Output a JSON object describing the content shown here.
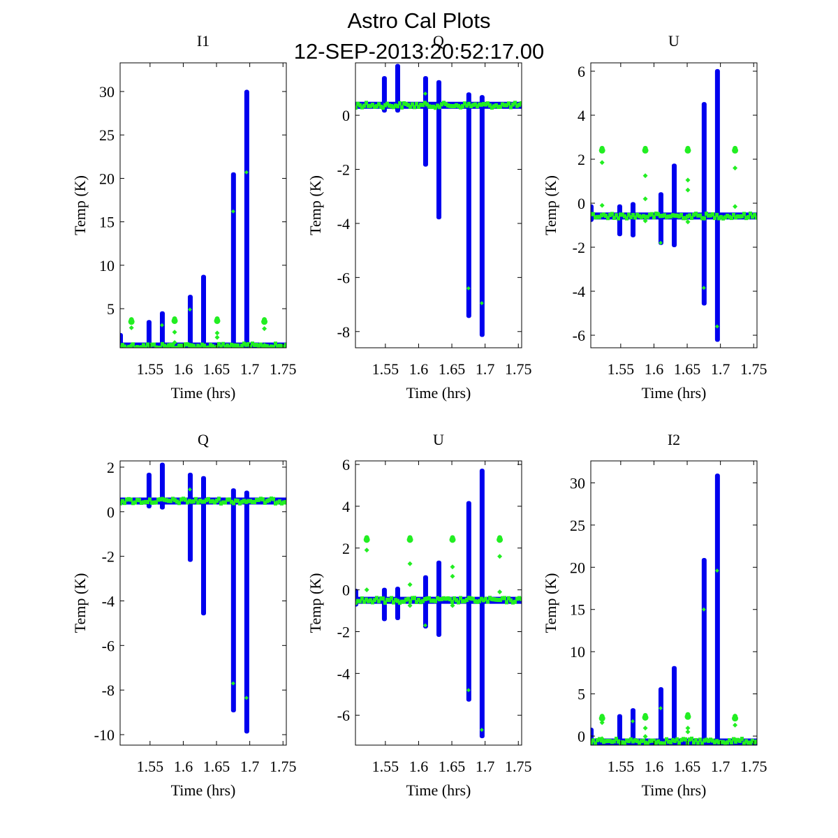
{
  "figure": {
    "title": "Astro Cal Plots",
    "subtitle": "12-SEP-2013:20:52:17.00"
  },
  "colors": {
    "series_blue": "#0000ee",
    "series_green": "#22ee22"
  },
  "chart_data": [
    {
      "type": "scatter",
      "title": "I1",
      "xlabel": "Time (hrs)",
      "ylabel": "Temp (K)",
      "xlim": [
        1.505,
        1.755
      ],
      "ylim": [
        0.5,
        33.3
      ],
      "xticks": [
        1.55,
        1.6,
        1.65,
        1.7,
        1.75
      ],
      "xtick_labels": [
        "1.55",
        "1.6",
        "1.65",
        "1.7",
        "1.75"
      ],
      "yticks": [
        5,
        10,
        15,
        20,
        25,
        30
      ],
      "ytick_labels": [
        "5",
        "10",
        "15",
        "20",
        "25",
        "30"
      ],
      "baseline": {
        "blue": 0.7,
        "green": 0.7
      },
      "series": [
        {
          "name": "blue",
          "spikes": [
            {
              "x": 1.505,
              "lo": 0.5,
              "hi": 2.2
            },
            {
              "x": 1.548,
              "lo": 0.5,
              "hi": 3.7
            },
            {
              "x": 1.568,
              "lo": 0.5,
              "hi": 4.7
            },
            {
              "x": 1.61,
              "lo": 0.5,
              "hi": 6.6
            },
            {
              "x": 1.63,
              "lo": 0.5,
              "hi": 8.9
            },
            {
              "x": 1.675,
              "lo": 0.5,
              "hi": 20.7
            },
            {
              "x": 1.695,
              "lo": 0.5,
              "hi": 30.2
            }
          ]
        },
        {
          "name": "green",
          "clusters": [
            {
              "x": 1.522,
              "y": 3.5,
              "extra": [
                2.8,
                0.8
              ]
            },
            {
              "x": 1.587,
              "y": 3.6,
              "extra": [
                2.3,
                1.1
              ]
            },
            {
              "x": 1.651,
              "y": 3.6,
              "extra": [
                2.2,
                1.7
              ]
            },
            {
              "x": 1.722,
              "y": 3.5,
              "extra": [
                2.7,
                0.8
              ]
            }
          ],
          "on_spike": [
            {
              "x": 1.568,
              "y": 3.1
            },
            {
              "x": 1.61,
              "y": 4.9
            },
            {
              "x": 1.675,
              "y": 16.2
            },
            {
              "x": 1.695,
              "y": 20.7
            }
          ]
        }
      ]
    },
    {
      "type": "scatter",
      "title": "Q",
      "xlabel": "Time (hrs)",
      "ylabel": "Temp (K)",
      "xlim": [
        1.505,
        1.755
      ],
      "ylim": [
        -8.6,
        1.94
      ],
      "xticks": [
        1.55,
        1.6,
        1.65,
        1.7,
        1.75
      ],
      "xtick_labels": [
        "1.55",
        "1.6",
        "1.65",
        "1.7",
        "1.75"
      ],
      "yticks": [
        -8,
        -6,
        -4,
        -2,
        0
      ],
      "ytick_labels": [
        "-8",
        "-6",
        "-4",
        "-2",
        "0"
      ],
      "baseline": {
        "blue": 0.37,
        "green": 0.37
      },
      "series": [
        {
          "name": "blue",
          "spikes": [
            {
              "x": 1.548,
              "lo": 0.1,
              "hi": 1.45
            },
            {
              "x": 1.568,
              "lo": 0.1,
              "hi": 1.9
            },
            {
              "x": 1.61,
              "lo": -1.9,
              "hi": 1.45
            },
            {
              "x": 1.63,
              "lo": -3.85,
              "hi": 1.3
            },
            {
              "x": 1.675,
              "lo": -7.5,
              "hi": 0.85
            },
            {
              "x": 1.695,
              "lo": -8.2,
              "hi": 0.75
            }
          ]
        },
        {
          "name": "green",
          "clusters": [],
          "on_spike": [
            {
              "x": 1.61,
              "y": 0.8
            },
            {
              "x": 1.675,
              "y": -6.4
            },
            {
              "x": 1.695,
              "y": -6.95
            }
          ]
        }
      ]
    },
    {
      "type": "scatter",
      "title": "U",
      "xlabel": "Time (hrs)",
      "ylabel": "Temp (K)",
      "xlim": [
        1.505,
        1.755
      ],
      "ylim": [
        -6.57,
        6.38
      ],
      "xticks": [
        1.55,
        1.6,
        1.65,
        1.7,
        1.75
      ],
      "xtick_labels": [
        "1.55",
        "1.6",
        "1.65",
        "1.7",
        "1.75"
      ],
      "yticks": [
        -6,
        -4,
        -2,
        0,
        2,
        4,
        6
      ],
      "ytick_labels": [
        "-6",
        "-4",
        "-2",
        "0",
        "2",
        "4",
        "6"
      ],
      "baseline": {
        "blue": -0.58,
        "green": -0.58
      },
      "series": [
        {
          "name": "blue",
          "spikes": [
            {
              "x": 1.505,
              "lo": -0.85,
              "hi": -0.05
            },
            {
              "x": 1.548,
              "lo": -1.5,
              "hi": -0.05
            },
            {
              "x": 1.568,
              "lo": -1.55,
              "hi": 0.05
            },
            {
              "x": 1.61,
              "lo": -1.9,
              "hi": 0.5
            },
            {
              "x": 1.63,
              "lo": -2.0,
              "hi": 1.8
            },
            {
              "x": 1.675,
              "lo": -4.65,
              "hi": 4.6
            },
            {
              "x": 1.695,
              "lo": -6.3,
              "hi": 6.1
            }
          ]
        },
        {
          "name": "green",
          "clusters": [
            {
              "x": 1.522,
              "y": 2.4,
              "extra": [
                1.85,
                -0.1
              ]
            },
            {
              "x": 1.587,
              "y": 2.4,
              "extra": [
                1.25,
                0.2,
                -0.8
              ]
            },
            {
              "x": 1.651,
              "y": 2.4,
              "extra": [
                1.05,
                0.6,
                -0.85
              ]
            },
            {
              "x": 1.722,
              "y": 2.4,
              "extra": [
                1.6,
                -0.15
              ]
            }
          ],
          "on_spike": [
            {
              "x": 1.61,
              "y": -1.8
            },
            {
              "x": 1.675,
              "y": -3.85
            },
            {
              "x": 1.695,
              "y": -5.6
            }
          ]
        }
      ]
    },
    {
      "type": "scatter",
      "title": "Q",
      "xlabel": "Time (hrs)",
      "ylabel": "Temp (K)",
      "xlim": [
        1.505,
        1.755
      ],
      "ylim": [
        -10.47,
        2.28
      ],
      "xticks": [
        1.55,
        1.6,
        1.65,
        1.7,
        1.75
      ],
      "xtick_labels": [
        "1.55",
        "1.6",
        "1.65",
        "1.7",
        "1.75"
      ],
      "yticks": [
        -10,
        -8,
        -6,
        -4,
        -2,
        0,
        2
      ],
      "ytick_labels": [
        "-10",
        "-8",
        "-6",
        "-4",
        "-2",
        "0",
        "2"
      ],
      "baseline": {
        "blue": 0.48,
        "green": 0.48
      },
      "series": [
        {
          "name": "blue",
          "spikes": [
            {
              "x": 1.548,
              "lo": 0.15,
              "hi": 1.75
            },
            {
              "x": 1.568,
              "lo": 0.1,
              "hi": 2.2
            },
            {
              "x": 1.61,
              "lo": -2.25,
              "hi": 1.75
            },
            {
              "x": 1.63,
              "lo": -4.65,
              "hi": 1.6
            },
            {
              "x": 1.675,
              "lo": -9.0,
              "hi": 1.05
            },
            {
              "x": 1.695,
              "lo": -9.95,
              "hi": 0.95
            }
          ]
        },
        {
          "name": "green",
          "clusters": [],
          "on_spike": [
            {
              "x": 1.61,
              "y": 1.0
            },
            {
              "x": 1.675,
              "y": -7.7
            },
            {
              "x": 1.695,
              "y": -8.35
            }
          ]
        }
      ]
    },
    {
      "type": "scatter",
      "title": "U",
      "xlabel": "Time (hrs)",
      "ylabel": "Temp (K)",
      "xlim": [
        1.505,
        1.755
      ],
      "ylim": [
        -7.43,
        6.17
      ],
      "xticks": [
        1.55,
        1.6,
        1.65,
        1.7,
        1.75
      ],
      "xtick_labels": [
        "1.55",
        "1.6",
        "1.65",
        "1.7",
        "1.75"
      ],
      "yticks": [
        -6,
        -4,
        -2,
        0,
        2,
        4,
        6
      ],
      "ytick_labels": [
        "-6",
        "-4",
        "-2",
        "0",
        "2",
        "4",
        "6"
      ],
      "baseline": {
        "blue": -0.5,
        "green": -0.5
      },
      "series": [
        {
          "name": "blue",
          "spikes": [
            {
              "x": 1.505,
              "lo": -0.8,
              "hi": 0.05
            },
            {
              "x": 1.548,
              "lo": -1.5,
              "hi": 0.1
            },
            {
              "x": 1.568,
              "lo": -1.45,
              "hi": 0.15
            },
            {
              "x": 1.61,
              "lo": -1.85,
              "hi": 0.7
            },
            {
              "x": 1.63,
              "lo": -2.25,
              "hi": 1.4
            },
            {
              "x": 1.675,
              "lo": -5.35,
              "hi": 4.25
            },
            {
              "x": 1.695,
              "lo": -7.1,
              "hi": 5.8
            }
          ]
        },
        {
          "name": "green",
          "clusters": [
            {
              "x": 1.522,
              "y": 2.4,
              "extra": [
                1.9,
                0.0
              ]
            },
            {
              "x": 1.587,
              "y": 2.4,
              "extra": [
                1.25,
                0.25,
                -0.75
              ]
            },
            {
              "x": 1.651,
              "y": 2.4,
              "extra": [
                1.1,
                0.65,
                -0.75
              ]
            },
            {
              "x": 1.722,
              "y": 2.4,
              "extra": [
                1.6,
                -0.1
              ]
            }
          ],
          "on_spike": [
            {
              "x": 1.61,
              "y": -1.7
            },
            {
              "x": 1.675,
              "y": -4.8
            },
            {
              "x": 1.695,
              "y": -6.7
            }
          ]
        }
      ]
    },
    {
      "type": "scatter",
      "title": "I2",
      "xlabel": "Time (hrs)",
      "ylabel": "Temp (K)",
      "xlim": [
        1.505,
        1.755
      ],
      "ylim": [
        -1.07,
        32.6
      ],
      "xticks": [
        1.55,
        1.6,
        1.65,
        1.7,
        1.75
      ],
      "xtick_labels": [
        "1.55",
        "1.6",
        "1.65",
        "1.7",
        "1.75"
      ],
      "yticks": [
        0,
        5,
        10,
        15,
        20,
        25,
        30
      ],
      "ytick_labels": [
        "0",
        "5",
        "10",
        "15",
        "20",
        "25",
        "30"
      ],
      "baseline": {
        "blue": -0.7,
        "green": -0.6
      },
      "series": [
        {
          "name": "blue",
          "spikes": [
            {
              "x": 1.505,
              "lo": -0.8,
              "hi": 1.0
            },
            {
              "x": 1.548,
              "lo": -0.8,
              "hi": 2.6
            },
            {
              "x": 1.568,
              "lo": -0.8,
              "hi": 3.3
            },
            {
              "x": 1.61,
              "lo": -0.8,
              "hi": 5.8
            },
            {
              "x": 1.63,
              "lo": -0.8,
              "hi": 8.3
            },
            {
              "x": 1.675,
              "lo": -0.8,
              "hi": 21.1
            },
            {
              "x": 1.695,
              "lo": -0.8,
              "hi": 31.1
            }
          ]
        },
        {
          "name": "green",
          "clusters": [
            {
              "x": 1.522,
              "y": 2.1,
              "extra": [
                1.6,
                -0.3
              ]
            },
            {
              "x": 1.587,
              "y": 2.2,
              "extra": [
                0.95,
                -0.05
              ]
            },
            {
              "x": 1.651,
              "y": 2.3,
              "extra": [
                0.95,
                0.5
              ]
            },
            {
              "x": 1.722,
              "y": 2.1,
              "extra": [
                1.3,
                -0.4
              ]
            }
          ],
          "on_spike": [
            {
              "x": 1.568,
              "y": 1.75
            },
            {
              "x": 1.61,
              "y": 3.3
            },
            {
              "x": 1.675,
              "y": 15.0
            },
            {
              "x": 1.695,
              "y": 19.6
            }
          ]
        }
      ]
    }
  ]
}
